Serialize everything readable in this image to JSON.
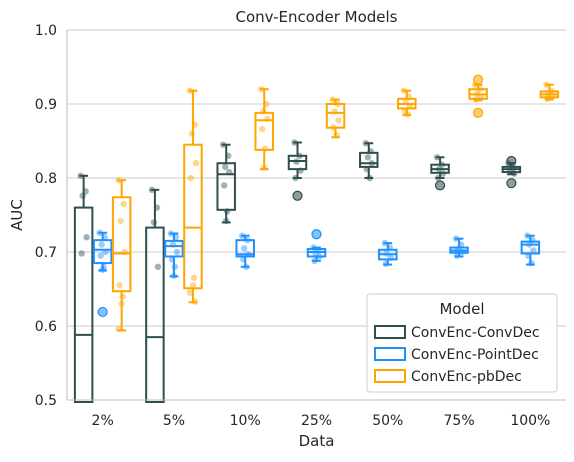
{
  "chart_data": {
    "type": "box",
    "title": "Conv-Encoder Models",
    "xlabel": "Data",
    "ylabel": "AUC",
    "ylim": [
      0.5,
      1.0
    ],
    "yticks": [
      "0.5",
      "0.6",
      "0.7",
      "0.8",
      "0.9",
      "1.0"
    ],
    "categories": [
      "2%",
      "5%",
      "10%",
      "25%",
      "50%",
      "75%",
      "100%"
    ],
    "grid": "horizontal",
    "legend": {
      "title": "Model",
      "position": "lower-right"
    },
    "series": [
      {
        "name": "ConvEnc-ConvDec",
        "color": "#2f4f4f",
        "boxes": [
          {
            "whislo": 0.48,
            "q1": 0.48,
            "med": 0.588,
            "q3": 0.76,
            "whishi": 0.803,
            "fliers": [],
            "points": [
              0.803,
              0.782,
              0.776,
              0.72,
              0.698,
              0.48
            ]
          },
          {
            "whislo": 0.48,
            "q1": 0.48,
            "med": 0.585,
            "q3": 0.733,
            "whishi": 0.784,
            "fliers": [],
            "points": [
              0.784,
              0.76,
              0.74,
              0.68,
              0.48
            ]
          },
          {
            "whislo": 0.74,
            "q1": 0.757,
            "med": 0.805,
            "q3": 0.82,
            "whishi": 0.845,
            "fliers": [],
            "points": [
              0.845,
              0.83,
              0.815,
              0.808,
              0.79,
              0.755,
              0.742
            ]
          },
          {
            "whislo": 0.8,
            "q1": 0.812,
            "med": 0.823,
            "q3": 0.83,
            "whishi": 0.848,
            "fliers": [
              0.776
            ],
            "points": [
              0.848,
              0.83,
              0.822,
              0.81,
              0.8
            ]
          },
          {
            "whislo": 0.8,
            "q1": 0.815,
            "med": 0.82,
            "q3": 0.834,
            "whishi": 0.847,
            "fliers": [],
            "points": [
              0.847,
              0.836,
              0.828,
              0.82,
              0.812,
              0.8
            ]
          },
          {
            "whislo": 0.8,
            "q1": 0.807,
            "med": 0.812,
            "q3": 0.818,
            "whishi": 0.828,
            "fliers": [
              0.79
            ],
            "points": [
              0.828,
              0.818,
              0.812,
              0.806,
              0.8
            ]
          },
          {
            "whislo": 0.805,
            "q1": 0.808,
            "med": 0.812,
            "q3": 0.815,
            "whishi": 0.82,
            "fliers": [
              0.823,
              0.793
            ],
            "points": [
              0.82,
              0.814,
              0.81,
              0.806
            ]
          }
        ]
      },
      {
        "name": "ConvEnc-PointDec",
        "color": "#1e90ff",
        "boxes": [
          {
            "whislo": 0.675,
            "q1": 0.685,
            "med": 0.703,
            "q3": 0.716,
            "whishi": 0.726,
            "fliers": [
              0.619
            ],
            "points": [
              0.726,
              0.72,
              0.71,
              0.7,
              0.695,
              0.68,
              0.676
            ]
          },
          {
            "whislo": 0.667,
            "q1": 0.694,
            "med": 0.708,
            "q3": 0.715,
            "whishi": 0.725,
            "fliers": [],
            "points": [
              0.725,
              0.72,
              0.71,
              0.7,
              0.69,
              0.68,
              0.668
            ]
          },
          {
            "whislo": 0.68,
            "q1": 0.694,
            "med": 0.697,
            "q3": 0.716,
            "whishi": 0.722,
            "fliers": [],
            "points": [
              0.722,
              0.716,
              0.705,
              0.697,
              0.69,
              0.68
            ]
          },
          {
            "whislo": 0.688,
            "q1": 0.694,
            "med": 0.7,
            "q3": 0.704,
            "whishi": 0.706,
            "fliers": [
              0.724
            ],
            "points": [
              0.706,
              0.702,
              0.698,
              0.694,
              0.688
            ]
          },
          {
            "whislo": 0.683,
            "q1": 0.69,
            "med": 0.697,
            "q3": 0.703,
            "whishi": 0.712,
            "fliers": [],
            "points": [
              0.712,
              0.706,
              0.698,
              0.692,
              0.684
            ]
          },
          {
            "whislo": 0.694,
            "q1": 0.699,
            "med": 0.702,
            "q3": 0.706,
            "whishi": 0.718,
            "fliers": [],
            "points": [
              0.718,
              0.71,
              0.704,
              0.7,
              0.695
            ]
          },
          {
            "whislo": 0.683,
            "q1": 0.698,
            "med": 0.71,
            "q3": 0.714,
            "whishi": 0.722,
            "fliers": [],
            "points": [
              0.722,
              0.716,
              0.71,
              0.702,
              0.695,
              0.685
            ]
          }
        ]
      },
      {
        "name": "ConvEnc-pbDec",
        "color": "#ffa500",
        "boxes": [
          {
            "whislo": 0.594,
            "q1": 0.647,
            "med": 0.698,
            "q3": 0.774,
            "whishi": 0.797,
            "fliers": [],
            "points": [
              0.797,
              0.765,
              0.742,
              0.7,
              0.655,
              0.64,
              0.63,
              0.596
            ]
          },
          {
            "whislo": 0.632,
            "q1": 0.651,
            "med": 0.733,
            "q3": 0.845,
            "whishi": 0.918,
            "fliers": [],
            "points": [
              0.918,
              0.872,
              0.86,
              0.82,
              0.8,
              0.665,
              0.655,
              0.645,
              0.633
            ]
          },
          {
            "whislo": 0.812,
            "q1": 0.838,
            "med": 0.878,
            "q3": 0.888,
            "whishi": 0.92,
            "fliers": [],
            "points": [
              0.92,
              0.9,
              0.89,
              0.88,
              0.866,
              0.84,
              0.814
            ]
          },
          {
            "whislo": 0.855,
            "q1": 0.868,
            "med": 0.888,
            "q3": 0.9,
            "whishi": 0.906,
            "fliers": [],
            "points": [
              0.906,
              0.9,
              0.89,
              0.878,
              0.868,
              0.858
            ]
          },
          {
            "whislo": 0.885,
            "q1": 0.894,
            "med": 0.9,
            "q3": 0.907,
            "whishi": 0.918,
            "fliers": [],
            "points": [
              0.918,
              0.91,
              0.903,
              0.897,
              0.89,
              0.886
            ]
          },
          {
            "whislo": 0.905,
            "q1": 0.907,
            "med": 0.913,
            "q3": 0.92,
            "whishi": 0.926,
            "fliers": [
              0.933,
              0.888
            ],
            "points": [
              0.926,
              0.92,
              0.914,
              0.91,
              0.906
            ]
          },
          {
            "whislo": 0.906,
            "q1": 0.909,
            "med": 0.913,
            "q3": 0.917,
            "whishi": 0.926,
            "fliers": [],
            "points": [
              0.926,
              0.918,
              0.914,
              0.91,
              0.907
            ]
          }
        ]
      }
    ]
  }
}
